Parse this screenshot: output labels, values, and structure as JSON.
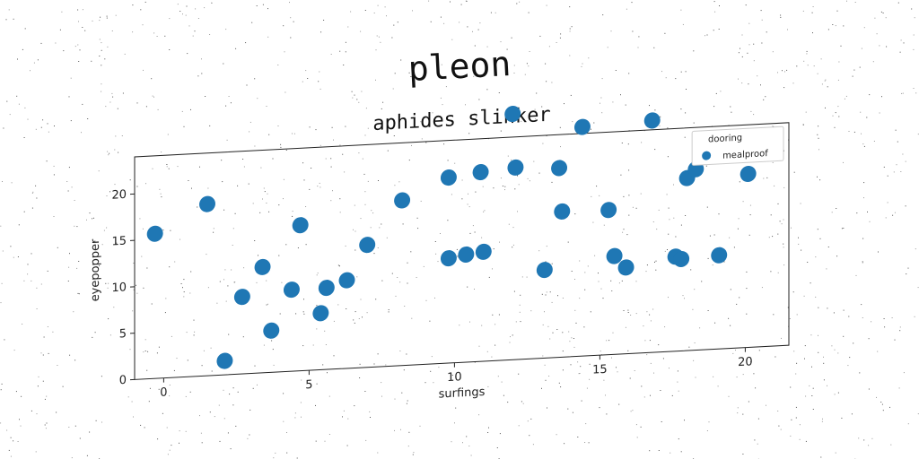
{
  "suptitle": "pleon",
  "chart_data": {
    "type": "scatter",
    "title": "aphides slinker",
    "xlabel": "surfings",
    "ylabel": "eyepopper",
    "xlim": [
      -1,
      21.5
    ],
    "ylim": [
      0,
      24
    ],
    "xticks": [
      0,
      5,
      10,
      15,
      20
    ],
    "yticks": [
      0,
      5,
      10,
      15,
      20
    ],
    "legend": {
      "title": "dooring",
      "placement": "top-right"
    },
    "series": [
      {
        "name": "mealproof",
        "color": "#1f77b4",
        "x": [
          -0.3,
          1.5,
          2.1,
          2.7,
          3.4,
          3.7,
          4.4,
          4.7,
          5.4,
          5.6,
          6.3,
          7.0,
          8.2,
          9.8,
          9.8,
          10.4,
          10.9,
          11.0,
          12.1,
          12.0,
          13.1,
          13.6,
          13.7,
          14.4,
          15.3,
          15.5,
          15.9,
          16.8,
          17.6,
          17.8,
          18.0,
          18.3,
          19.1,
          19.1,
          20.1
        ],
        "y": [
          15.6,
          18.5,
          1.5,
          8.3,
          11.4,
          4.5,
          8.8,
          15.7,
          6.1,
          8.8,
          9.5,
          13.2,
          17.8,
          20.0,
          11.3,
          11.6,
          20.4,
          11.8,
          20.7,
          26.5,
          9.5,
          20.4,
          15.7,
          24.7,
          15.6,
          10.6,
          9.3,
          25.0,
          10.2,
          9.9,
          18.6,
          19.5,
          20.8,
          10.1,
          18.7
        ]
      }
    ]
  }
}
